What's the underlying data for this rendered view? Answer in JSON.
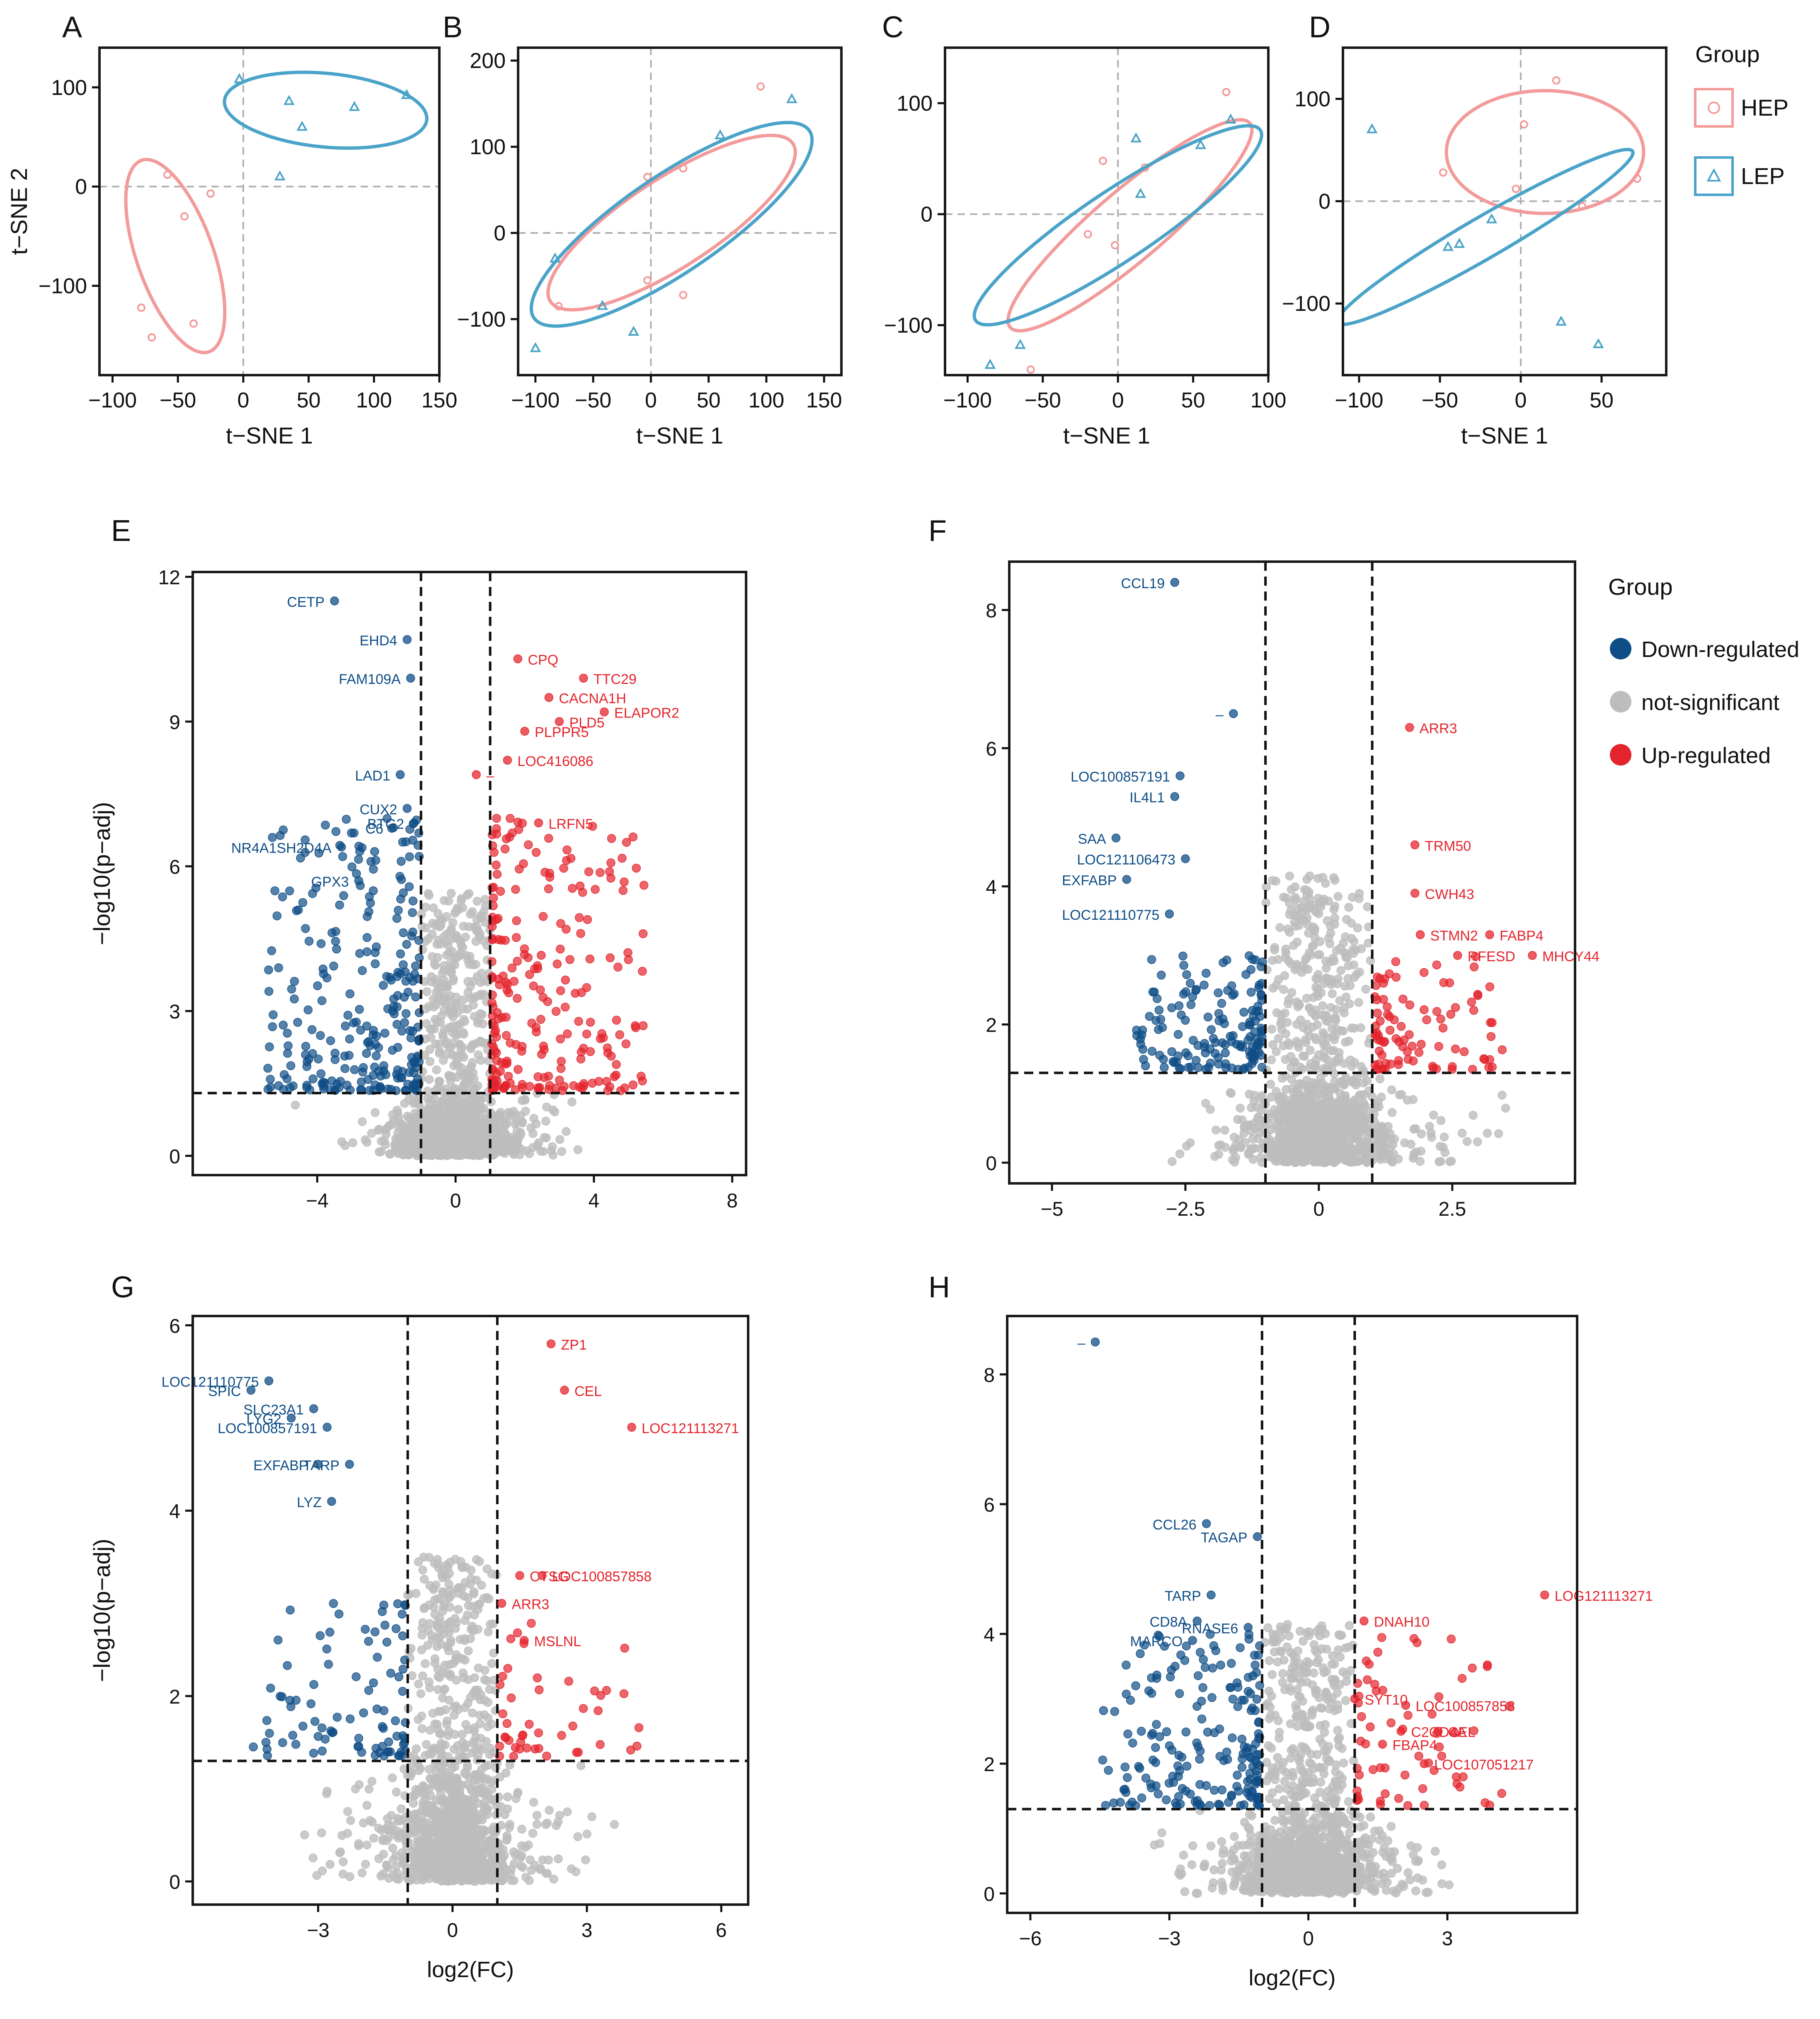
{
  "colors": {
    "hep": "#f39a9a",
    "lep": "#4aa3c8",
    "down": "#0e4d86",
    "ns": "#bdbdbd",
    "up": "#e4242c",
    "frame": "#1a1a1a",
    "guide": "#b0b0b0"
  },
  "legend_tsne": {
    "title": "Group",
    "items": [
      {
        "label": "HEP",
        "marker": "circle-icon",
        "color": "#f39a9a"
      },
      {
        "label": "LEP",
        "marker": "triangle-icon",
        "color": "#4aa3c8"
      }
    ]
  },
  "legend_volcano": {
    "title": "Group",
    "items": [
      {
        "label": "Down-regulated",
        "color": "#0e4d86"
      },
      {
        "label": "not-significant",
        "color": "#bdbdbd"
      },
      {
        "label": "Up-regulated",
        "color": "#e4242c"
      }
    ]
  },
  "chart_data": [
    {
      "panel": "A",
      "type": "scatter",
      "xlabel": "t−SNE 1",
      "ylabel": "t−SNE 2",
      "xlim": [
        -110,
        150
      ],
      "ylim": [
        -190,
        140
      ],
      "xticks": [
        -100,
        -50,
        0,
        50,
        100,
        150
      ],
      "xtick_labels": [
        "−100",
        "−50",
        "0",
        "50",
        "100",
        "150"
      ],
      "yticks": [
        -100,
        0,
        100
      ],
      "ytick_labels": [
        "−100",
        "0",
        "100"
      ],
      "ref_x": 0,
      "ref_y": 0,
      "series": [
        {
          "name": "HEP",
          "points": [
            [
              -58,
              12
            ],
            [
              -25,
              -7
            ],
            [
              -45,
              -30
            ],
            [
              -78,
              -122
            ],
            [
              -70,
              -152
            ],
            [
              -38,
              -138
            ]
          ],
          "ellipse": {
            "cx": -52,
            "cy": -70,
            "rx": 30,
            "ry": 100,
            "rot": 14
          }
        },
        {
          "name": "LEP",
          "points": [
            [
              -3,
              108
            ],
            [
              35,
              86
            ],
            [
              45,
              60
            ],
            [
              85,
              80
            ],
            [
              125,
              92
            ],
            [
              28,
              10
            ]
          ],
          "ellipse": {
            "cx": 63,
            "cy": 77,
            "rx": 78,
            "ry": 37,
            "rot": -8
          }
        }
      ]
    },
    {
      "panel": "B",
      "type": "scatter",
      "xlabel": "t−SNE 1",
      "ylabel": "",
      "xlim": [
        -115,
        165
      ],
      "ylim": [
        -165,
        215
      ],
      "xticks": [
        -100,
        -50,
        0,
        50,
        100,
        150
      ],
      "xtick_labels": [
        "−100",
        "−50",
        "0",
        "50",
        "100",
        "150"
      ],
      "yticks": [
        -100,
        0,
        100,
        200
      ],
      "ytick_labels": [
        "−100",
        "0",
        "100",
        "200"
      ],
      "ref_x": 0,
      "ref_y": 0,
      "series": [
        {
          "name": "HEP",
          "points": [
            [
              95,
              170
            ],
            [
              28,
              75
            ],
            [
              -3,
              65
            ],
            [
              -80,
              -85
            ],
            [
              -3,
              -55
            ],
            [
              28,
              -72
            ]
          ],
          "ellipse": {
            "cx": 18,
            "cy": 12,
            "rx": 140,
            "ry": 46,
            "rot": 43
          }
        },
        {
          "name": "LEP",
          "points": [
            [
              -83,
              -30
            ],
            [
              -100,
              -134
            ],
            [
              -42,
              -85
            ],
            [
              -15,
              -115
            ],
            [
              60,
              113
            ],
            [
              122,
              155
            ]
          ],
          "ellipse": {
            "cx": 18,
            "cy": 10,
            "rx": 162,
            "ry": 50,
            "rot": 44
          }
        }
      ]
    },
    {
      "panel": "C",
      "type": "scatter",
      "xlabel": "t−SNE 1",
      "ylabel": "",
      "xlim": [
        -115,
        100
      ],
      "ylim": [
        -145,
        150
      ],
      "xticks": [
        -100,
        -50,
        0,
        50,
        100
      ],
      "xtick_labels": [
        "−100",
        "−50",
        "0",
        "50",
        "100"
      ],
      "yticks": [
        -100,
        0,
        100
      ],
      "ytick_labels": [
        "−100",
        "0",
        "100"
      ],
      "ref_x": 0,
      "ref_y": 0,
      "series": [
        {
          "name": "HEP",
          "points": [
            [
              -10,
              48
            ],
            [
              18,
              42
            ],
            [
              -20,
              -18
            ],
            [
              -2,
              -28
            ],
            [
              72,
              110
            ],
            [
              -58,
              -140
            ]
          ],
          "ellipse": {
            "cx": 8,
            "cy": -10,
            "rx": 122,
            "ry": 27,
            "rot": 50
          }
        },
        {
          "name": "LEP",
          "points": [
            [
              12,
              68
            ],
            [
              15,
              18
            ],
            [
              55,
              62
            ],
            [
              75,
              85
            ],
            [
              -65,
              -118
            ],
            [
              -85,
              -136
            ]
          ],
          "ellipse": {
            "cx": 0,
            "cy": -10,
            "rx": 128,
            "ry": 28,
            "rot": 43
          }
        }
      ]
    },
    {
      "panel": "D",
      "type": "scatter",
      "xlabel": "t−SNE 1",
      "ylabel": "",
      "xlim": [
        -110,
        90
      ],
      "ylim": [
        -170,
        150
      ],
      "xticks": [
        -100,
        -50,
        0,
        50
      ],
      "xtick_labels": [
        "−100",
        "−50",
        "0",
        "50"
      ],
      "yticks": [
        -100,
        0,
        100
      ],
      "ytick_labels": [
        "−100",
        "0",
        "100"
      ],
      "ref_x": 0,
      "ref_y": 0,
      "series": [
        {
          "name": "HEP",
          "points": [
            [
              -48,
              28
            ],
            [
              2,
              75
            ],
            [
              22,
              118
            ],
            [
              -3,
              12
            ],
            [
              38,
              -5
            ],
            [
              72,
              22
            ]
          ],
          "ellipse": {
            "cx": 15,
            "cy": 48,
            "rx": 61,
            "ry": 60,
            "rot": 0
          }
        },
        {
          "name": "LEP",
          "points": [
            [
              -92,
              70
            ],
            [
              -18,
              -18
            ],
            [
              -38,
              -42
            ],
            [
              -45,
              -45
            ],
            [
              25,
              -118
            ],
            [
              48,
              -140
            ]
          ],
          "ellipse": {
            "cx": -22,
            "cy": -35,
            "rx": 124,
            "ry": 17,
            "rot": 43
          }
        }
      ]
    },
    {
      "panel": "E",
      "type": "scatter",
      "xlabel": "",
      "ylabel": "−log10(p−adj)",
      "xlim": [
        -7.6,
        8.4
      ],
      "ylim": [
        -0.4,
        12.1
      ],
      "xticks": [
        -4,
        0,
        4,
        8
      ],
      "xtick_labels": [
        "−4",
        "0",
        "4",
        "8"
      ],
      "yticks": [
        0,
        3,
        6,
        9,
        12
      ],
      "ytick_labels": [
        "0",
        "3",
        "6",
        "9",
        "12"
      ],
      "vlines": [
        -1,
        1
      ],
      "hline": 1.3,
      "cloud": {
        "seed": 11,
        "n_ns": 1300,
        "n_down": 260,
        "n_up": 230,
        "sd": 0.75,
        "xmax": 5.5,
        "ymax": 3.4,
        "sig_ymax": 7
      },
      "labels_down": [
        {
          "text": "CETP",
          "x": -3.5,
          "y": 11.5
        },
        {
          "text": "EHD4",
          "x": -1.4,
          "y": 10.7
        },
        {
          "text": "FAM109A",
          "x": -1.3,
          "y": 9.9
        },
        {
          "text": "LAD1",
          "x": -1.6,
          "y": 7.9
        },
        {
          "text": "CUX2",
          "x": -1.4,
          "y": 7.2
        },
        {
          "text": "C6",
          "x": -1.8,
          "y": 6.8
        },
        {
          "text": "BTG2",
          "x": -1.2,
          "y": 6.9
        },
        {
          "text": "NR4A1SH2D4A",
          "x": -3.3,
          "y": 6.4
        },
        {
          "text": "GPX3",
          "x": -2.8,
          "y": 5.7
        }
      ],
      "labels_up": [
        {
          "text": "CPQ",
          "x": 1.8,
          "y": 10.3
        },
        {
          "text": "TTC29",
          "x": 3.7,
          "y": 9.9
        },
        {
          "text": "CACNA1H",
          "x": 2.7,
          "y": 9.5
        },
        {
          "text": "ELAPOR2",
          "x": 4.3,
          "y": 9.2
        },
        {
          "text": "PLPPR5",
          "x": 2.0,
          "y": 8.8
        },
        {
          "text": "PLD5",
          "x": 3.0,
          "y": 9.0
        },
        {
          "text": "LOC416086",
          "x": 1.5,
          "y": 8.2
        },
        {
          "text": "–",
          "x": 0.6,
          "y": 7.9
        },
        {
          "text": "LRFN5",
          "x": 2.4,
          "y": 6.9
        }
      ]
    },
    {
      "panel": "F",
      "type": "scatter",
      "xlabel": "",
      "ylabel": "",
      "xlim": [
        -5.8,
        4.8
      ],
      "ylim": [
        -0.3,
        8.7
      ],
      "xticks": [
        -5,
        -2.5,
        0,
        2.5
      ],
      "xtick_labels": [
        "−5",
        "−2.5",
        "0",
        "2.5"
      ],
      "yticks": [
        0,
        2,
        4,
        6,
        8
      ],
      "ytick_labels": [
        "0",
        "2",
        "4",
        "6",
        "8"
      ],
      "vlines": [
        -1,
        1
      ],
      "hline": 1.3,
      "cloud": {
        "seed": 23,
        "n_ns": 1300,
        "n_down": 150,
        "n_up": 90,
        "sd": 0.55,
        "xmax": 3.5,
        "ymax": 2.6,
        "sig_ymax": 3
      },
      "labels_down": [
        {
          "text": "CCL19",
          "x": -2.7,
          "y": 8.4
        },
        {
          "text": "–",
          "x": -1.6,
          "y": 6.5
        },
        {
          "text": "LOC100857191",
          "x": -2.6,
          "y": 5.6
        },
        {
          "text": "IL4L1",
          "x": -2.7,
          "y": 5.3
        },
        {
          "text": "SAA",
          "x": -3.8,
          "y": 4.7
        },
        {
          "text": "LOC121106473",
          "x": -2.5,
          "y": 4.4
        },
        {
          "text": "EXFABP",
          "x": -3.6,
          "y": 4.1
        },
        {
          "text": "LOC121110775",
          "x": -2.8,
          "y": 3.6
        }
      ],
      "labels_up": [
        {
          "text": "ARR3",
          "x": 1.7,
          "y": 6.3
        },
        {
          "text": "TRM50",
          "x": 1.8,
          "y": 4.6
        },
        {
          "text": "CWH43",
          "x": 1.8,
          "y": 3.9
        },
        {
          "text": "FABP4",
          "x": 3.2,
          "y": 3.3
        },
        {
          "text": "STMN2",
          "x": 1.9,
          "y": 3.3
        },
        {
          "text": "RFESD",
          "x": 2.6,
          "y": 3.0
        },
        {
          "text": "MHCY44",
          "x": 4.0,
          "y": 3.0
        }
      ]
    },
    {
      "panel": "G",
      "type": "scatter",
      "xlabel": "log2(FC)",
      "ylabel": "−log10(p−adj)",
      "xlim": [
        -5.8,
        6.6
      ],
      "ylim": [
        -0.25,
        6.1
      ],
      "xticks": [
        -3,
        0,
        3,
        6
      ],
      "xtick_labels": [
        "−3",
        "0",
        "3",
        "6"
      ],
      "yticks": [
        0,
        2,
        4,
        6
      ],
      "ytick_labels": [
        "0",
        "2",
        "4",
        "6"
      ],
      "vlines": [
        -1,
        1
      ],
      "hline": 1.3,
      "cloud": {
        "seed": 37,
        "n_ns": 1300,
        "n_down": 90,
        "n_up": 45,
        "sd": 0.6,
        "xmax": 4.5,
        "ymax": 2.2,
        "sig_ymax": 3
      },
      "labels_down": [
        {
          "text": "LOC121110775",
          "x": -4.1,
          "y": 5.4
        },
        {
          "text": "SLC23A1",
          "x": -3.1,
          "y": 5.1
        },
        {
          "text": "SPIC",
          "x": -4.5,
          "y": 5.3
        },
        {
          "text": "LYG2",
          "x": -3.6,
          "y": 5.0
        },
        {
          "text": "LOC100857191",
          "x": -2.8,
          "y": 4.9
        },
        {
          "text": "EXFABP",
          "x": -3.0,
          "y": 4.5
        },
        {
          "text": "TARP",
          "x": -2.3,
          "y": 4.5
        },
        {
          "text": "LYZ",
          "x": -2.7,
          "y": 4.1
        }
      ],
      "labels_up": [
        {
          "text": "ZP1",
          "x": 2.2,
          "y": 5.8
        },
        {
          "text": "CEL",
          "x": 2.5,
          "y": 5.3
        },
        {
          "text": "LOC121113271",
          "x": 4.0,
          "y": 4.9
        },
        {
          "text": "LOC100857858",
          "x": 2.0,
          "y": 3.3
        },
        {
          "text": "CTSG",
          "x": 1.5,
          "y": 3.3
        },
        {
          "text": "ARR3",
          "x": 1.1,
          "y": 3.0
        },
        {
          "text": "MSLNL",
          "x": 1.6,
          "y": 2.6
        }
      ]
    },
    {
      "panel": "H",
      "type": "scatter",
      "xlabel": "log2(FC)",
      "ylabel": "",
      "xlim": [
        -6.5,
        5.8
      ],
      "ylim": [
        -0.3,
        8.9
      ],
      "xticks": [
        -6,
        -3,
        0,
        3
      ],
      "xtick_labels": [
        "−6",
        "−3",
        "0",
        "3"
      ],
      "yticks": [
        0,
        2,
        4,
        6,
        8
      ],
      "ytick_labels": [
        "0",
        "2",
        "4",
        "6",
        "8"
      ],
      "vlines": [
        -1,
        1
      ],
      "hline": 1.3,
      "cloud": {
        "seed": 53,
        "n_ns": 1300,
        "n_down": 190,
        "n_up": 60,
        "sd": 0.65,
        "xmax": 4.5,
        "ymax": 2.6,
        "sig_ymax": 4
      },
      "labels_down": [
        {
          "text": "–",
          "x": -4.6,
          "y": 8.5
        },
        {
          "text": "CCL26",
          "x": -2.2,
          "y": 5.7
        },
        {
          "text": "TAGAP",
          "x": -1.1,
          "y": 5.5
        },
        {
          "text": "TARP",
          "x": -2.1,
          "y": 4.6
        },
        {
          "text": "CD8A",
          "x": -2.4,
          "y": 4.2
        },
        {
          "text": "RNASE6",
          "x": -1.3,
          "y": 4.1
        },
        {
          "text": "MARCO",
          "x": -2.5,
          "y": 3.9
        }
      ],
      "labels_up": [
        {
          "text": "LOG121113271",
          "x": 5.1,
          "y": 4.6
        },
        {
          "text": "DNAH10",
          "x": 1.2,
          "y": 4.2
        },
        {
          "text": "SYT10",
          "x": 1.0,
          "y": 3.0
        },
        {
          "text": "LOC100857858",
          "x": 2.1,
          "y": 2.9
        },
        {
          "text": "C2CD4A",
          "x": 2.0,
          "y": 2.5
        },
        {
          "text": "CEL",
          "x": 2.8,
          "y": 2.5
        },
        {
          "text": "FBAP4",
          "x": 1.6,
          "y": 2.3
        },
        {
          "text": "LOC107051217",
          "x": 2.5,
          "y": 2.0
        }
      ]
    }
  ]
}
